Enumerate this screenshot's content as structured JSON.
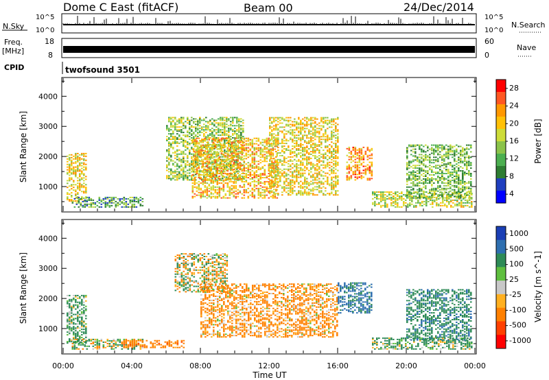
{
  "header": {
    "title": "Dome C East (fitACF)",
    "beam": "Beam 00",
    "date": "24/Dec/2014"
  },
  "strips": {
    "nsky_label": "N.Sky",
    "nsky_top": "10^5",
    "nsky_bottom": "10^0",
    "nsearch_label": "N.Search",
    "nsearch_top": "10^5",
    "nsearch_bottom": "10^0",
    "freq_label": "Freq.",
    "freq_unit": "[MHz]",
    "freq_ticks": [
      "18",
      "8"
    ],
    "nave_label": "Nave",
    "nave_ticks": [
      "60",
      "0"
    ],
    "cpid_label": "CPID",
    "cpid_value": "twofsound 3501"
  },
  "colorbars": {
    "power": {
      "label": "Power [dB]",
      "ticks": [
        "28",
        "24",
        "20",
        "16",
        "12",
        "8",
        "4"
      ],
      "colors": [
        "#0000ff",
        "#1f3fbf",
        "#2e7d32",
        "#4caf50",
        "#8bc34a",
        "#cddc39",
        "#ffc107",
        "#ff9800",
        "#ff5722",
        "#ff0000"
      ]
    },
    "velocity": {
      "label": "Velocity [m s^-1]",
      "ticks": [
        "1000",
        "500",
        "100",
        "25",
        "-25",
        "-100",
        "-500",
        "-1000"
      ],
      "colors": [
        "#1a3fb5",
        "#2e6fb0",
        "#2e8b57",
        "#5fbf3f",
        "#c8c8c8",
        "#ffb020",
        "#ff8000",
        "#ff4000",
        "#ff0000"
      ]
    }
  },
  "axes": {
    "ylabel": "Slant Range [km]",
    "yticks": [
      "4000",
      "3000",
      "2000",
      "1000"
    ],
    "xlabel": "Time UT",
    "xticks": [
      "00:00",
      "04:00",
      "08:00",
      "12:00",
      "16:00",
      "20:00",
      "00:00"
    ]
  },
  "chart_data": [
    {
      "type": "heatmap",
      "title": "Power [dB]",
      "xlabel": "Time UT",
      "ylabel": "Slant Range [km]",
      "x_range_hours": [
        0,
        24
      ],
      "y_range_km": [
        180,
        4600
      ],
      "scale_range_db": [
        0,
        30
      ],
      "colorbar_ticks": [
        4,
        8,
        12,
        16,
        20,
        24,
        28
      ],
      "regions": [
        {
          "t": [
            0.2,
            1.3
          ],
          "r": [
            500,
            2100
          ],
          "v": 18
        },
        {
          "t": [
            0.5,
            4.7
          ],
          "r": [
            300,
            650
          ],
          "v": 10
        },
        {
          "t": [
            6.0,
            10.5
          ],
          "r": [
            1200,
            3300
          ],
          "v": 14
        },
        {
          "t": [
            7.5,
            12.5
          ],
          "r": [
            600,
            2600
          ],
          "v": 20
        },
        {
          "t": [
            12.0,
            16.0
          ],
          "r": [
            700,
            3300
          ],
          "v": 18
        },
        {
          "t": [
            16.5,
            18.0
          ],
          "r": [
            1200,
            2300
          ],
          "v": 22
        },
        {
          "t": [
            18.0,
            23.8
          ],
          "r": [
            300,
            800
          ],
          "v": 16
        },
        {
          "t": [
            20.0,
            23.8
          ],
          "r": [
            600,
            2400
          ],
          "v": 12
        }
      ]
    },
    {
      "type": "heatmap",
      "title": "Velocity [m s^-1]",
      "xlabel": "Time UT",
      "ylabel": "Slant Range [km]",
      "x_range_hours": [
        0,
        24
      ],
      "y_range_km": [
        180,
        4600
      ],
      "scale_range_ms": [
        -1000,
        1000
      ],
      "colorbar_ticks": [
        1000,
        500,
        100,
        25,
        -25,
        -100,
        -500,
        -1000
      ],
      "regions": [
        {
          "t": [
            0.2,
            1.3
          ],
          "r": [
            500,
            2100
          ],
          "v": 200
        },
        {
          "t": [
            0.5,
            4.7
          ],
          "r": [
            300,
            650
          ],
          "v": 50
        },
        {
          "t": [
            3.5,
            7.0
          ],
          "r": [
            350,
            600
          ],
          "v": -300
        },
        {
          "t": [
            6.5,
            9.5
          ],
          "r": [
            2200,
            3500
          ],
          "v": 0
        },
        {
          "t": [
            8.0,
            16.0
          ],
          "r": [
            700,
            2500
          ],
          "v": -200
        },
        {
          "t": [
            16.0,
            18.0
          ],
          "r": [
            1500,
            2500
          ],
          "v": 600
        },
        {
          "t": [
            18.0,
            23.8
          ],
          "r": [
            300,
            700
          ],
          "v": 150
        },
        {
          "t": [
            20.0,
            23.8
          ],
          "r": [
            600,
            2300
          ],
          "v": 400
        }
      ]
    }
  ]
}
